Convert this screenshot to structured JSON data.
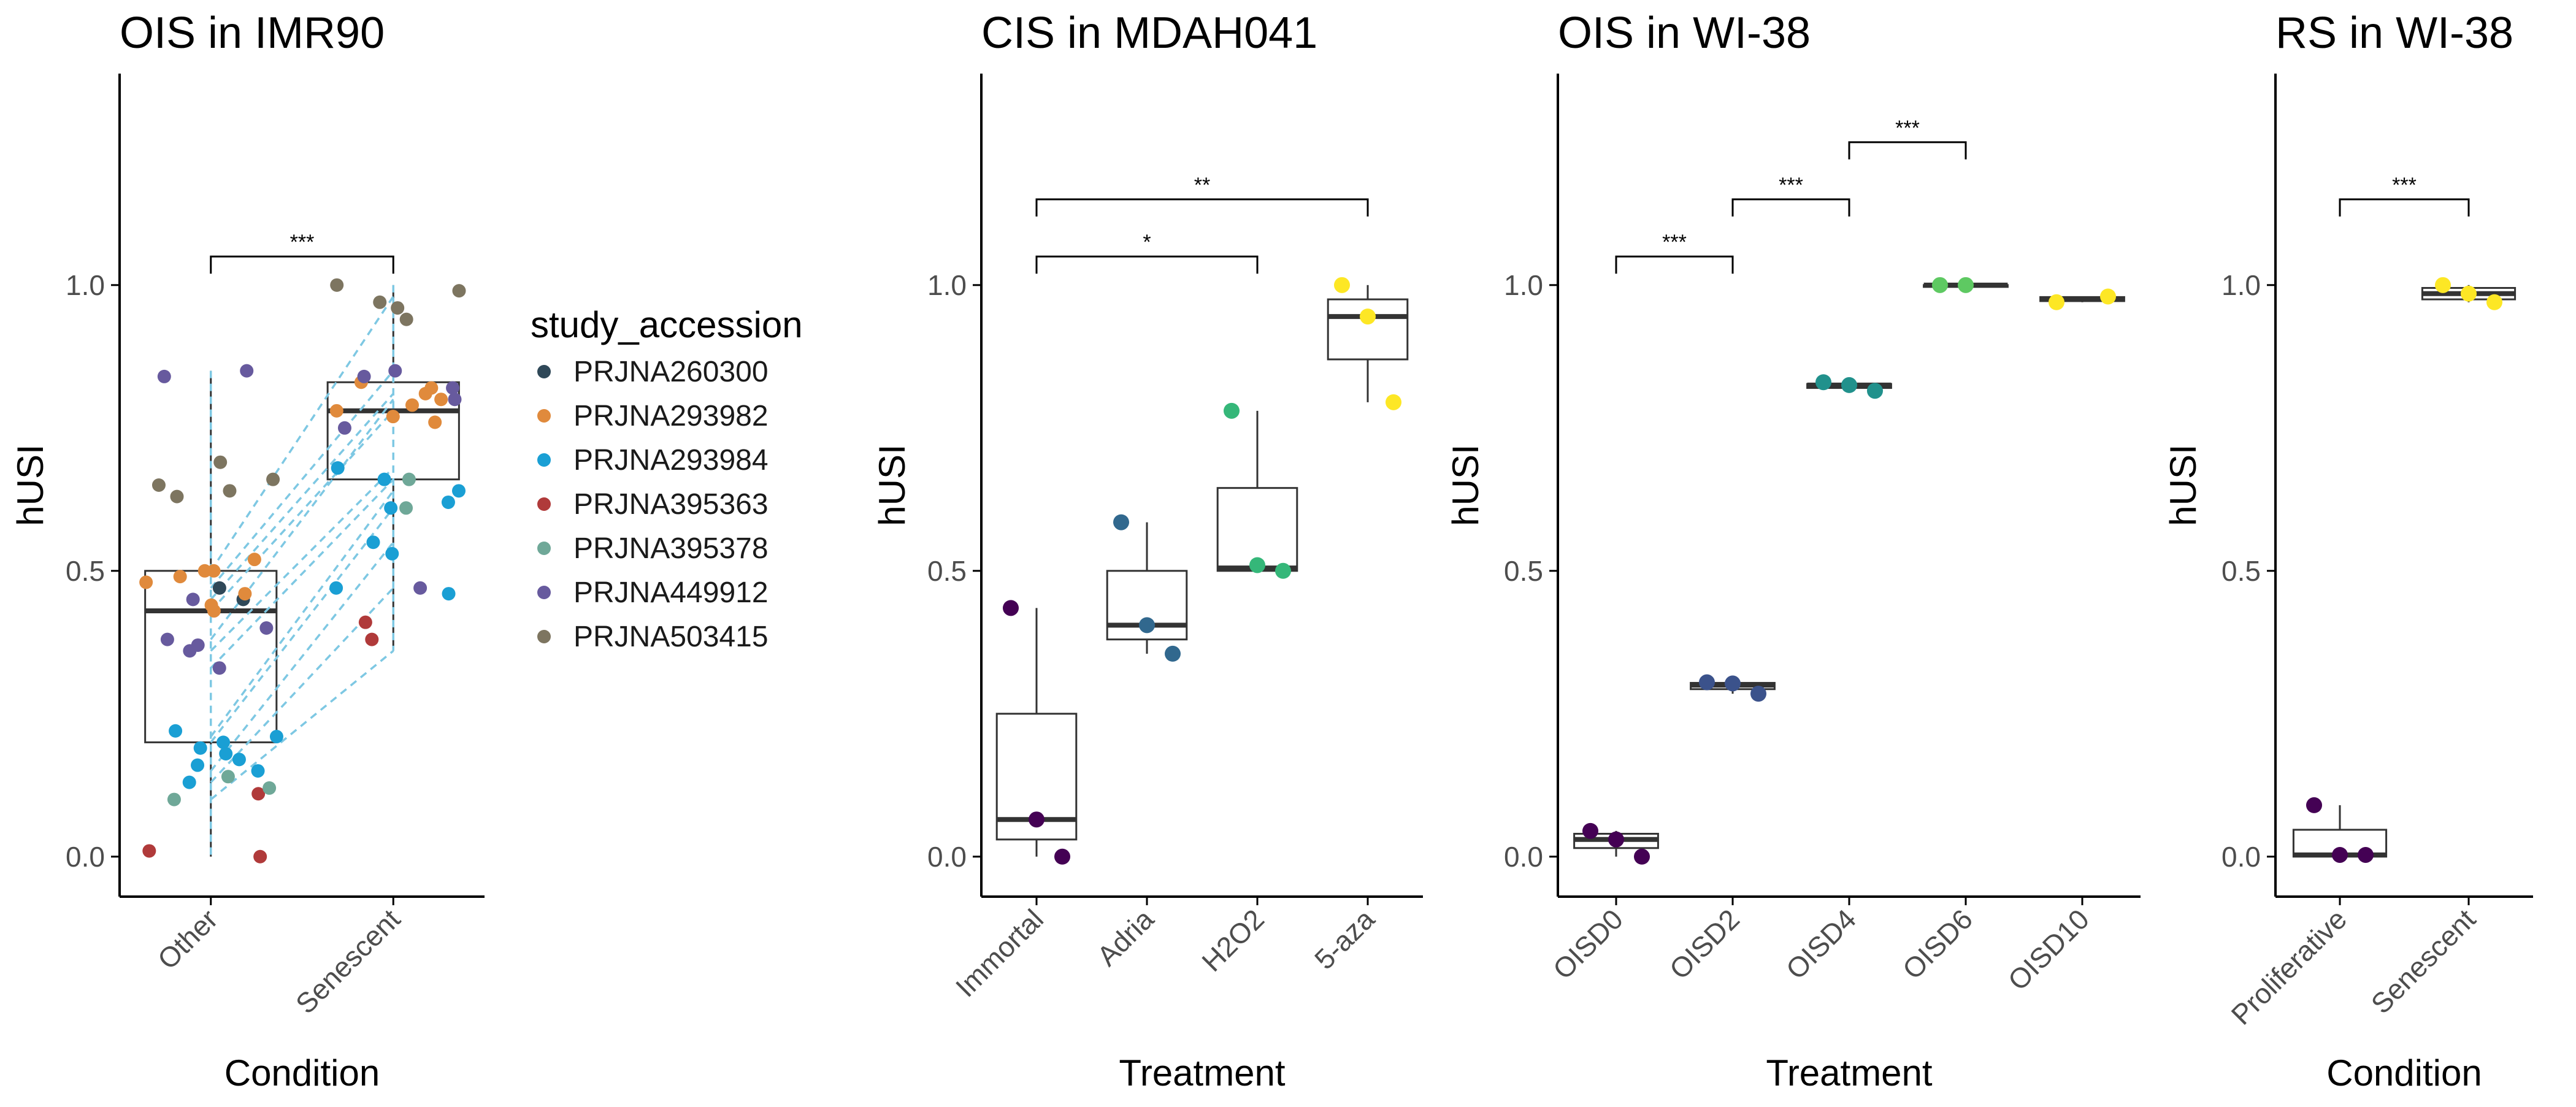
{
  "chart_data": [
    {
      "type": "box",
      "title": "OIS in IMR90",
      "xlabel": "Condition",
      "ylabel": "hUSI",
      "categories": [
        "Other",
        "Senescent"
      ],
      "ylim": [
        -0.07,
        1.37
      ],
      "yticks": [
        "0.0",
        "0.5",
        "1.0"
      ],
      "yticks_values": [
        0,
        0.5,
        1
      ],
      "boxes": [
        {
          "category": "Other",
          "min": 0.0,
          "q1": 0.2,
          "median": 0.43,
          "q3": 0.5,
          "max": 0.85
        },
        {
          "category": "Senescent",
          "min": 0.36,
          "q1": 0.66,
          "median": 0.78,
          "q3": 0.83,
          "max": 1.0
        }
      ],
      "comparisons": [
        {
          "from": "Other",
          "to": "Senescent",
          "y": 1.05,
          "label": "***"
        }
      ],
      "points": [
        {
          "x": "Other",
          "y": 0.45,
          "s": "PRJNA260300"
        },
        {
          "x": "Other",
          "y": 0.47,
          "s": "PRJNA260300"
        },
        {
          "x": "Other",
          "y": 0.5,
          "s": "PRJNA293982"
        },
        {
          "x": "Other",
          "y": 0.49,
          "s": "PRJNA293982"
        },
        {
          "x": "Other",
          "y": 0.52,
          "s": "PRJNA293982"
        },
        {
          "x": "Other",
          "y": 0.46,
          "s": "PRJNA293982"
        },
        {
          "x": "Other",
          "y": 0.44,
          "s": "PRJNA293982"
        },
        {
          "x": "Other",
          "y": 0.43,
          "s": "PRJNA293982"
        },
        {
          "x": "Other",
          "y": 0.5,
          "s": "PRJNA293982"
        },
        {
          "x": "Other",
          "y": 0.48,
          "s": "PRJNA293982"
        },
        {
          "x": "Other",
          "y": 0.2,
          "s": "PRJNA293984"
        },
        {
          "x": "Other",
          "y": 0.18,
          "s": "PRJNA293984"
        },
        {
          "x": "Other",
          "y": 0.16,
          "s": "PRJNA293984"
        },
        {
          "x": "Other",
          "y": 0.15,
          "s": "PRJNA293984"
        },
        {
          "x": "Other",
          "y": 0.13,
          "s": "PRJNA293984"
        },
        {
          "x": "Other",
          "y": 0.19,
          "s": "PRJNA293984"
        },
        {
          "x": "Other",
          "y": 0.22,
          "s": "PRJNA293984"
        },
        {
          "x": "Other",
          "y": 0.21,
          "s": "PRJNA293984"
        },
        {
          "x": "Other",
          "y": 0.17,
          "s": "PRJNA293984"
        },
        {
          "x": "Other",
          "y": 0.0,
          "s": "PRJNA395363"
        },
        {
          "x": "Other",
          "y": 0.11,
          "s": "PRJNA395363"
        },
        {
          "x": "Other",
          "y": 0.01,
          "s": "PRJNA395363"
        },
        {
          "x": "Other",
          "y": 0.14,
          "s": "PRJNA395378"
        },
        {
          "x": "Other",
          "y": 0.12,
          "s": "PRJNA395378"
        },
        {
          "x": "Other",
          "y": 0.1,
          "s": "PRJNA395378"
        },
        {
          "x": "Other",
          "y": 0.85,
          "s": "PRJNA449912"
        },
        {
          "x": "Other",
          "y": 0.84,
          "s": "PRJNA449912"
        },
        {
          "x": "Other",
          "y": 0.4,
          "s": "PRJNA449912"
        },
        {
          "x": "Other",
          "y": 0.38,
          "s": "PRJNA449912"
        },
        {
          "x": "Other",
          "y": 0.36,
          "s": "PRJNA449912"
        },
        {
          "x": "Other",
          "y": 0.33,
          "s": "PRJNA449912"
        },
        {
          "x": "Other",
          "y": 0.45,
          "s": "PRJNA449912"
        },
        {
          "x": "Other",
          "y": 0.37,
          "s": "PRJNA449912"
        },
        {
          "x": "Other",
          "y": 0.69,
          "s": "PRJNA503415"
        },
        {
          "x": "Other",
          "y": 0.65,
          "s": "PRJNA503415"
        },
        {
          "x": "Other",
          "y": 0.64,
          "s": "PRJNA503415"
        },
        {
          "x": "Other",
          "y": 0.66,
          "s": "PRJNA503415"
        },
        {
          "x": "Other",
          "y": 0.63,
          "s": "PRJNA503415"
        },
        {
          "x": "Senescent",
          "y": 0.83,
          "s": "PRJNA293982"
        },
        {
          "x": "Senescent",
          "y": 0.82,
          "s": "PRJNA293982"
        },
        {
          "x": "Senescent",
          "y": 0.8,
          "s": "PRJNA293982"
        },
        {
          "x": "Senescent",
          "y": 0.79,
          "s": "PRJNA293982"
        },
        {
          "x": "Senescent",
          "y": 0.78,
          "s": "PRJNA293982"
        },
        {
          "x": "Senescent",
          "y": 0.77,
          "s": "PRJNA293982"
        },
        {
          "x": "Senescent",
          "y": 0.76,
          "s": "PRJNA293982"
        },
        {
          "x": "Senescent",
          "y": 0.81,
          "s": "PRJNA293982"
        },
        {
          "x": "Senescent",
          "y": 0.68,
          "s": "PRJNA293984"
        },
        {
          "x": "Senescent",
          "y": 0.66,
          "s": "PRJNA293984"
        },
        {
          "x": "Senescent",
          "y": 0.64,
          "s": "PRJNA293984"
        },
        {
          "x": "Senescent",
          "y": 0.62,
          "s": "PRJNA293984"
        },
        {
          "x": "Senescent",
          "y": 0.61,
          "s": "PRJNA293984"
        },
        {
          "x": "Senescent",
          "y": 0.55,
          "s": "PRJNA293984"
        },
        {
          "x": "Senescent",
          "y": 0.53,
          "s": "PRJNA293984"
        },
        {
          "x": "Senescent",
          "y": 0.47,
          "s": "PRJNA293984"
        },
        {
          "x": "Senescent",
          "y": 0.46,
          "s": "PRJNA293984"
        },
        {
          "x": "Senescent",
          "y": 0.41,
          "s": "PRJNA395363"
        },
        {
          "x": "Senescent",
          "y": 0.38,
          "s": "PRJNA395363"
        },
        {
          "x": "Senescent",
          "y": 0.66,
          "s": "PRJNA395378"
        },
        {
          "x": "Senescent",
          "y": 0.61,
          "s": "PRJNA395378"
        },
        {
          "x": "Senescent",
          "y": 0.85,
          "s": "PRJNA449912"
        },
        {
          "x": "Senescent",
          "y": 0.84,
          "s": "PRJNA449912"
        },
        {
          "x": "Senescent",
          "y": 0.82,
          "s": "PRJNA449912"
        },
        {
          "x": "Senescent",
          "y": 0.8,
          "s": "PRJNA449912"
        },
        {
          "x": "Senescent",
          "y": 0.75,
          "s": "PRJNA449912"
        },
        {
          "x": "Senescent",
          "y": 0.47,
          "s": "PRJNA449912"
        },
        {
          "x": "Senescent",
          "y": 1.0,
          "s": "PRJNA503415"
        },
        {
          "x": "Senescent",
          "y": 0.99,
          "s": "PRJNA503415"
        },
        {
          "x": "Senescent",
          "y": 0.96,
          "s": "PRJNA503415"
        },
        {
          "x": "Senescent",
          "y": 0.97,
          "s": "PRJNA503415"
        },
        {
          "x": "Senescent",
          "y": 0.94,
          "s": "PRJNA503415"
        }
      ],
      "pairs": [
        {
          "from": 0.5,
          "to": 0.98
        },
        {
          "from": 0.47,
          "to": 0.85
        },
        {
          "from": 0.45,
          "to": 0.81
        },
        {
          "from": 0.43,
          "to": 0.78
        },
        {
          "from": 0.38,
          "to": 0.8
        },
        {
          "from": 0.36,
          "to": 0.68
        },
        {
          "from": 0.33,
          "to": 0.66
        },
        {
          "from": 0.21,
          "to": 0.64
        },
        {
          "from": 0.2,
          "to": 0.61
        },
        {
          "from": 0.15,
          "to": 0.55
        },
        {
          "from": 0.13,
          "to": 0.47
        },
        {
          "from": 0.1,
          "to": 0.36
        }
      ]
    },
    {
      "type": "box",
      "title": "CIS in MDAH041",
      "xlabel": "Treatment",
      "ylabel": "hUSI",
      "categories": [
        "Immortal",
        "Adria",
        "H2O2",
        "5-aza"
      ],
      "ylim": [
        -0.07,
        1.37
      ],
      "yticks": [
        "0.0",
        "0.5",
        "1.0"
      ],
      "yticks_values": [
        0,
        0.5,
        1
      ],
      "boxes": [
        {
          "category": "Immortal",
          "min": 0.0,
          "q1": 0.03,
          "median": 0.065,
          "q3": 0.25,
          "max": 0.435
        },
        {
          "category": "Adria",
          "min": 0.355,
          "q1": 0.38,
          "median": 0.405,
          "q3": 0.5,
          "max": 0.585
        },
        {
          "category": "H2O2",
          "min": 0.5,
          "q1": 0.5,
          "median": 0.505,
          "q3": 0.645,
          "max": 0.78
        },
        {
          "category": "5-aza",
          "min": 0.795,
          "q1": 0.87,
          "median": 0.945,
          "q3": 0.975,
          "max": 1.0
        }
      ],
      "comparisons": [
        {
          "from": "Immortal",
          "to": "H2O2",
          "y": 1.05,
          "label": "*"
        },
        {
          "from": "Immortal",
          "to": "5-aza",
          "y": 1.15,
          "label": "**"
        }
      ],
      "points": [
        {
          "x": "Immortal",
          "y": 0.435,
          "c": "#440154"
        },
        {
          "x": "Immortal",
          "y": 0.065,
          "c": "#440154"
        },
        {
          "x": "Immortal",
          "y": 0.0,
          "c": "#440154"
        },
        {
          "x": "Adria",
          "y": 0.585,
          "c": "#31688e"
        },
        {
          "x": "Adria",
          "y": 0.405,
          "c": "#31688e"
        },
        {
          "x": "Adria",
          "y": 0.355,
          "c": "#31688e"
        },
        {
          "x": "H2O2",
          "y": 0.78,
          "c": "#35b779"
        },
        {
          "x": "H2O2",
          "y": 0.51,
          "c": "#35b779"
        },
        {
          "x": "H2O2",
          "y": 0.5,
          "c": "#35b779"
        },
        {
          "x": "5-aza",
          "y": 1.0,
          "c": "#fde725"
        },
        {
          "x": "5-aza",
          "y": 0.945,
          "c": "#fde725"
        },
        {
          "x": "5-aza",
          "y": 0.795,
          "c": "#fde725"
        }
      ]
    },
    {
      "type": "box",
      "title": "OIS in WI-38",
      "xlabel": "Treatment",
      "ylabel": "hUSI",
      "categories": [
        "OISD0",
        "OISD2",
        "OISD4",
        "OISD6",
        "OISD10"
      ],
      "ylim": [
        -0.07,
        1.37
      ],
      "yticks": [
        "0.0",
        "0.5",
        "1.0"
      ],
      "yticks_values": [
        0,
        0.5,
        1
      ],
      "boxes": [
        {
          "category": "OISD0",
          "min": 0.0,
          "q1": 0.015,
          "median": 0.03,
          "q3": 0.04,
          "max": 0.045
        },
        {
          "category": "OISD2",
          "min": 0.285,
          "q1": 0.293,
          "median": 0.3,
          "q3": 0.304,
          "max": 0.305
        },
        {
          "category": "OISD4",
          "min": 0.815,
          "q1": 0.82,
          "median": 0.825,
          "q3": 0.827,
          "max": 0.83
        },
        {
          "category": "OISD6",
          "min": 0.997,
          "q1": 0.998,
          "median": 1.0,
          "q3": 1.0,
          "max": 1.0
        },
        {
          "category": "OISD10",
          "min": 0.97,
          "q1": 0.972,
          "median": 0.975,
          "q3": 0.979,
          "max": 0.98
        }
      ],
      "comparisons": [
        {
          "from": "OISD0",
          "to": "OISD2",
          "y": 1.05,
          "label": "***"
        },
        {
          "from": "OISD2",
          "to": "OISD4",
          "y": 1.15,
          "label": "***"
        },
        {
          "from": "OISD4",
          "to": "OISD6",
          "y": 1.25,
          "label": "***"
        }
      ],
      "points": [
        {
          "x": "OISD0",
          "y": 0.045,
          "c": "#440154"
        },
        {
          "x": "OISD0",
          "y": 0.03,
          "c": "#440154"
        },
        {
          "x": "OISD0",
          "y": 0.0,
          "c": "#440154"
        },
        {
          "x": "OISD2",
          "y": 0.305,
          "c": "#3b528b"
        },
        {
          "x": "OISD2",
          "y": 0.303,
          "c": "#3b528b"
        },
        {
          "x": "OISD2",
          "y": 0.285,
          "c": "#3b528b"
        },
        {
          "x": "OISD4",
          "y": 0.83,
          "c": "#21918c"
        },
        {
          "x": "OISD4",
          "y": 0.825,
          "c": "#21918c"
        },
        {
          "x": "OISD4",
          "y": 0.815,
          "c": "#21918c"
        },
        {
          "x": "OISD6",
          "y": 1.0,
          "c": "#5ec962"
        },
        {
          "x": "OISD6",
          "y": 1.0,
          "c": "#5ec962"
        },
        {
          "x": "OISD10",
          "y": 0.98,
          "c": "#fde725"
        },
        {
          "x": "OISD10",
          "y": 0.97,
          "c": "#fde725"
        }
      ]
    },
    {
      "type": "box",
      "title": "RS in WI-38",
      "xlabel": "Condition",
      "ylabel": "hUSI",
      "categories": [
        "Proliferative",
        "Senescent"
      ],
      "ylim": [
        -0.07,
        1.37
      ],
      "yticks": [
        "0.0",
        "0.5",
        "1.0"
      ],
      "yticks_values": [
        0,
        0.5,
        1
      ],
      "boxes": [
        {
          "category": "Proliferative",
          "min": 0.0,
          "q1": 0.0,
          "median": 0.003,
          "q3": 0.047,
          "max": 0.09
        },
        {
          "category": "Senescent",
          "min": 0.97,
          "q1": 0.975,
          "median": 0.985,
          "q3": 0.995,
          "max": 1.0
        }
      ],
      "comparisons": [
        {
          "from": "Proliferative",
          "to": "Senescent",
          "y": 1.15,
          "label": "***"
        }
      ],
      "points": [
        {
          "x": "Proliferative",
          "y": 0.09,
          "c": "#440154"
        },
        {
          "x": "Proliferative",
          "y": 0.003,
          "c": "#440154"
        },
        {
          "x": "Proliferative",
          "y": 0.003,
          "c": "#440154"
        },
        {
          "x": "Senescent",
          "y": 1.0,
          "c": "#fde725"
        },
        {
          "x": "Senescent",
          "y": 0.985,
          "c": "#fde725"
        },
        {
          "x": "Senescent",
          "y": 0.97,
          "c": "#fde725"
        }
      ]
    }
  ],
  "legend": {
    "title": "study_accession",
    "items": [
      {
        "label": "PRJNA260300",
        "color": "#2f4858"
      },
      {
        "label": "PRJNA293982",
        "color": "#e08a3c"
      },
      {
        "label": "PRJNA293984",
        "color": "#1a9fd4"
      },
      {
        "label": "PRJNA395363",
        "color": "#b03a3a"
      },
      {
        "label": "PRJNA395378",
        "color": "#6fa898"
      },
      {
        "label": "PRJNA449912",
        "color": "#675a9e"
      },
      {
        "label": "PRJNA503415",
        "color": "#7d7560"
      }
    ]
  },
  "colors": {
    "pair_line": "#7ec8e3",
    "box_line": "#333333",
    "axis": "#000000"
  }
}
